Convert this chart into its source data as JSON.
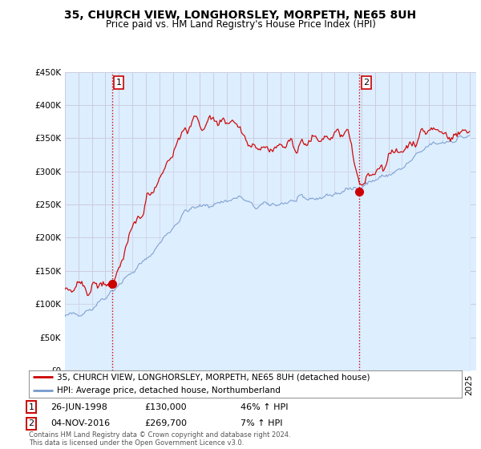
{
  "title": "35, CHURCH VIEW, LONGHORSLEY, MORPETH, NE65 8UH",
  "subtitle": "Price paid vs. HM Land Registry's House Price Index (HPI)",
  "legend_line1": "35, CHURCH VIEW, LONGHORSLEY, MORPETH, NE65 8UH (detached house)",
  "legend_line2": "HPI: Average price, detached house, Northumberland",
  "annotation1_label": "1",
  "annotation1_date": "26-JUN-1998",
  "annotation1_price": "£130,000",
  "annotation1_hpi": "46% ↑ HPI",
  "annotation2_label": "2",
  "annotation2_date": "04-NOV-2016",
  "annotation2_price": "£269,700",
  "annotation2_hpi": "7% ↑ HPI",
  "footer": "Contains HM Land Registry data © Crown copyright and database right 2024.\nThis data is licensed under the Open Government Licence v3.0.",
  "ylim": [
    0,
    450000
  ],
  "yticks": [
    0,
    50000,
    100000,
    150000,
    200000,
    250000,
    300000,
    350000,
    400000,
    450000
  ],
  "red_color": "#cc0000",
  "blue_color": "#7799cc",
  "fill_color": "#ddeeff",
  "marker1_year": 1998.48,
  "marker1_value": 130000,
  "marker2_year": 2016.84,
  "marker2_value": 269700,
  "background_color": "#ffffff",
  "grid_color": "#ccccdd"
}
